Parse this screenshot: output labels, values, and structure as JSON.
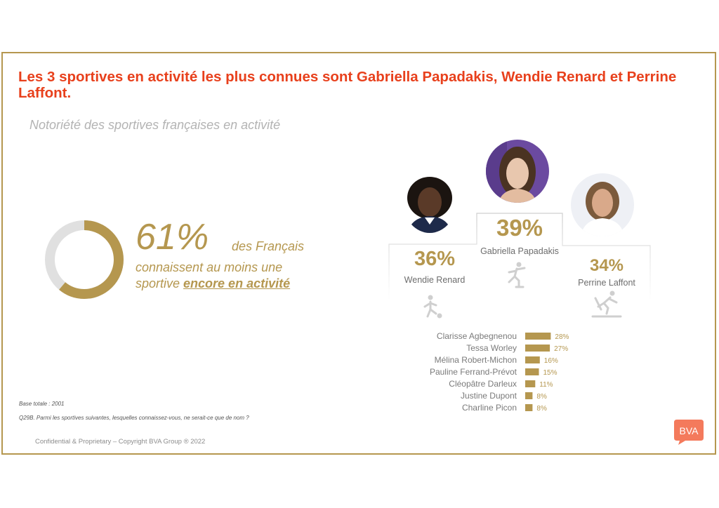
{
  "title": "Les 3 sportives en activité les plus connues sont Gabriella Papadakis, Wendie Renard et Perrine Laffont.",
  "subtitle": "Notoriété des sportives françaises en activité",
  "headline": {
    "value": "61%",
    "fraction": 0.61,
    "suffix": "des Français",
    "line2": "connaissent au moins une",
    "line3_prefix": "sportive ",
    "line3_emphasis": "encore en activité"
  },
  "podium": [
    {
      "rank": 1,
      "name": "Gabriella Papadakis",
      "pct": "39%",
      "icon": "figure-skating-icon"
    },
    {
      "rank": 2,
      "name": "Wendie Renard",
      "pct": "36%",
      "icon": "football-icon"
    },
    {
      "rank": 3,
      "name": "Perrine Laffont",
      "pct": "34%",
      "icon": "skiing-icon"
    }
  ],
  "chart_data": {
    "type": "bar",
    "orientation": "horizontal",
    "categories": [
      "Clarisse Agbegnenou",
      "Tessa Worley",
      "Mélina Robert-Michon",
      "Pauline Ferrand-Prévot",
      "Cléopâtre Darleux",
      "Justine Dupont",
      "Charline Picon"
    ],
    "values": [
      28,
      27,
      16,
      15,
      11,
      8,
      8
    ],
    "value_labels": [
      "28%",
      "27%",
      "16%",
      "15%",
      "11%",
      "8%",
      "8%"
    ],
    "color": "#b5974f"
  },
  "notes": {
    "base": "Base totale : 2001",
    "question": "Q29B. Parmi les sportives suivantes, lesquelles connaissez-vous, ne serait-ce que de nom ?"
  },
  "footer": "Confidential & Proprietary – Copyright BVA Group ®  2022",
  "logo_text": "BVA",
  "colors": {
    "accent": "#b5974f",
    "title": "#e8401c",
    "logo": "#f47a5c",
    "donut_track": "#e0e0e0"
  }
}
